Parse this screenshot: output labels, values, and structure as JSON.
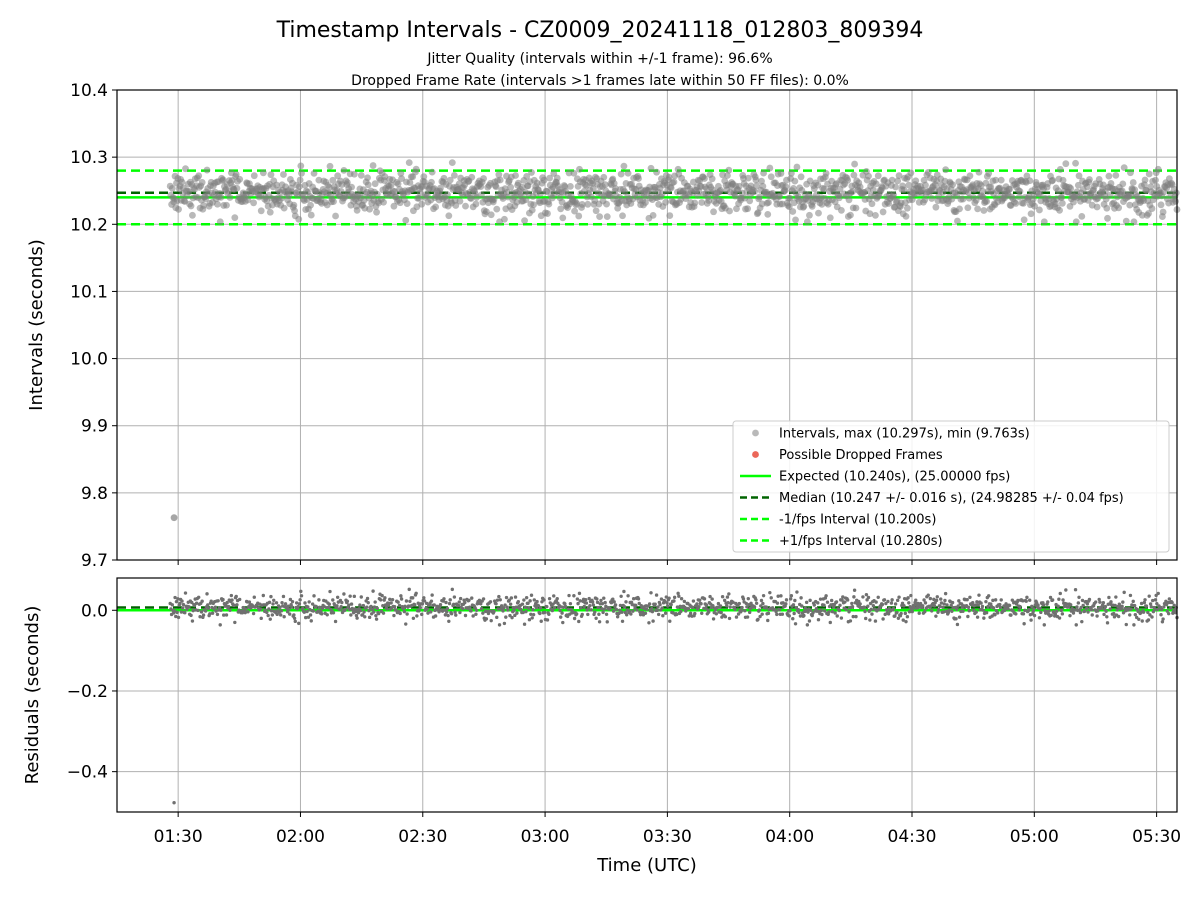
{
  "figure": {
    "title": "Timestamp Intervals - CZ0009_20241118_012803_809394",
    "subtitle_1": "Jitter Quality (intervals within +/-1 frame): 96.6%",
    "subtitle_2": "Dropped Frame Rate (intervals >1 frames late within 50 FF files): 0.0%"
  },
  "colors": {
    "intervals": "#808080",
    "dropped": "#e74c3c",
    "expected": "#00ff00",
    "median": "#006400",
    "fps_interval": "#00ff00",
    "grid": "#b0b0b0",
    "residuals": "#707070"
  },
  "chart_data": [
    {
      "type": "scatter",
      "panel": "top",
      "ylabel": "Intervals (seconds)",
      "xlim": [
        "01:15",
        "05:35"
      ],
      "ylim": [
        9.7,
        10.4
      ],
      "xticks": [
        "01:30",
        "02:00",
        "02:30",
        "03:00",
        "03:30",
        "04:00",
        "04:30",
        "05:00",
        "05:30"
      ],
      "yticks": [
        "9.7",
        "9.8",
        "9.9",
        "10.0",
        "10.1",
        "10.2",
        "10.3",
        "10.4"
      ],
      "grid": true,
      "legend_position": "lower-right",
      "series": [
        {
          "name": "Intervals, max (10.297s), min (9.763s)",
          "kind": "points",
          "x_start": "01:28:03",
          "x_end": "05:35",
          "count": 1450,
          "center": 10.247,
          "std": 0.016,
          "max": 10.297,
          "min": 9.763,
          "outliers": [
            {
              "x": "01:29:00",
              "y": 9.763
            }
          ]
        },
        {
          "name": "Possible Dropped Frames",
          "kind": "points",
          "points": []
        },
        {
          "name": "Expected (10.240s), (25.00000 fps)",
          "kind": "hline",
          "y": 10.24,
          "style": "solid"
        },
        {
          "name": "Median (10.247 +/- 0.016 s), (24.98285 +/- 0.04 fps)",
          "kind": "hline",
          "y": 10.247,
          "style": "dashed"
        },
        {
          "name": "-1/fps Interval (10.200s)",
          "kind": "hline",
          "y": 10.2,
          "style": "dashed"
        },
        {
          "name": "+1/fps Interval (10.280s)",
          "kind": "hline",
          "y": 10.28,
          "style": "dashed"
        }
      ]
    },
    {
      "type": "scatter",
      "panel": "bottom",
      "xlabel": "Time (UTC)",
      "ylabel": "Residuals (seconds)",
      "xlim": [
        "01:15",
        "05:35"
      ],
      "ylim": [
        -0.5,
        0.08
      ],
      "yticks": [
        "−0.4",
        "−0.2",
        "0.0"
      ],
      "grid": true,
      "series": [
        {
          "kind": "points",
          "x_start": "01:28:03",
          "x_end": "05:35",
          "count": 1450,
          "center": 0.007,
          "std": 0.016,
          "max": 0.057,
          "outliers": [
            {
              "x": "01:29:00",
              "y": -0.477
            }
          ]
        },
        {
          "kind": "hline",
          "y": 0.0,
          "style": "solid"
        },
        {
          "kind": "hline",
          "y": 0.007,
          "style": "dashed"
        }
      ]
    }
  ]
}
